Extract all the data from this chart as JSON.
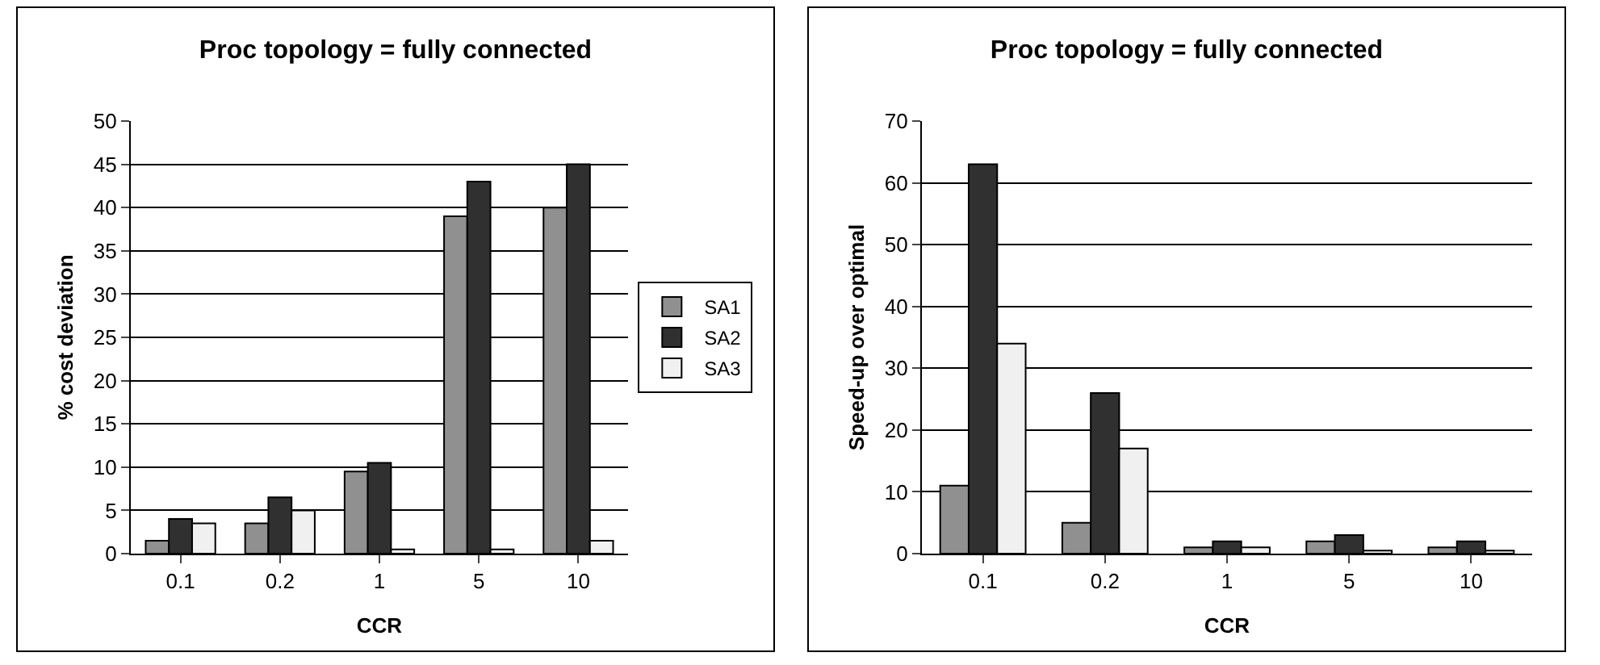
{
  "chart_data": [
    {
      "type": "bar",
      "title": "Proc topology = fully connected",
      "xlabel": "CCR",
      "ylabel": "% cost deviation",
      "categories": [
        "0.1",
        "0.2",
        "1",
        "5",
        "10"
      ],
      "ylim": [
        0,
        50
      ],
      "yticks": [
        0,
        5,
        10,
        15,
        20,
        25,
        30,
        35,
        40,
        45,
        50
      ],
      "grid": "y",
      "legend": "right",
      "series": [
        {
          "name": "SA1",
          "color": "#909090",
          "values": [
            1.5,
            3.5,
            9.5,
            39,
            40
          ]
        },
        {
          "name": "SA2",
          "color": "#303030",
          "values": [
            4,
            6.5,
            10.5,
            43,
            45
          ]
        },
        {
          "name": "SA3",
          "color": "#f0f0f0",
          "values": [
            3.5,
            5,
            0.5,
            0.5,
            1.5
          ]
        }
      ]
    },
    {
      "type": "bar",
      "title": "Proc topology = fully connected",
      "xlabel": "CCR",
      "ylabel": "Speed-up over optimal",
      "categories": [
        "0.1",
        "0.2",
        "1",
        "5",
        "10"
      ],
      "ylim": [
        0,
        70
      ],
      "yticks": [
        0,
        10,
        20,
        30,
        40,
        50,
        60,
        70
      ],
      "grid": "y",
      "series": [
        {
          "color": "#909090",
          "values": [
            11,
            5,
            1,
            2,
            1
          ]
        },
        {
          "color": "#303030",
          "values": [
            63,
            26,
            2,
            3,
            2
          ]
        },
        {
          "color": "#f0f0f0",
          "values": [
            34,
            17,
            1,
            0.5,
            0.5
          ]
        }
      ]
    }
  ]
}
